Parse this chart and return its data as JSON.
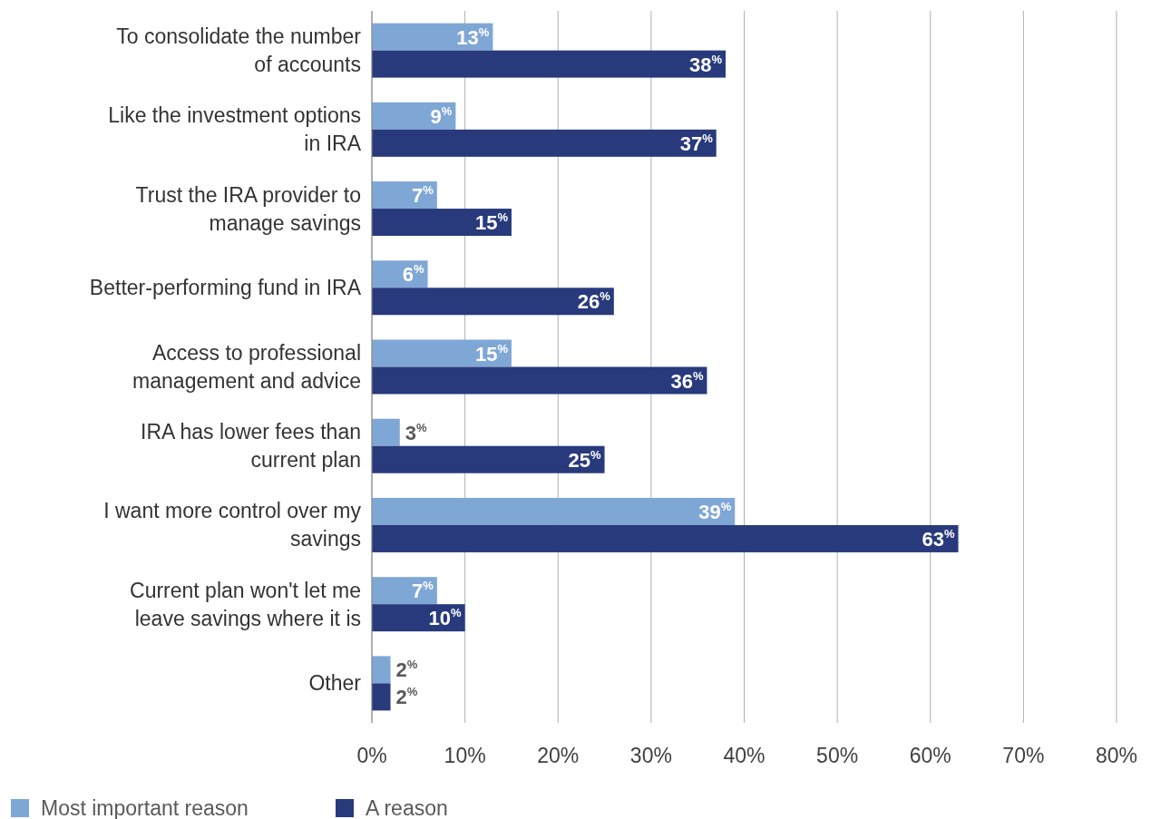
{
  "chart_data": {
    "type": "bar",
    "orientation": "horizontal",
    "categories": [
      "To consolidate the number of accounts",
      "Like the investment options in IRA",
      "Trust the IRA provider to manage savings",
      "Better-performing fund in IRA",
      "Access to professional management and advice",
      "IRA has lower fees than current plan",
      "I want more control over my savings",
      "Current plan won't let me leave savings where it is",
      "Other"
    ],
    "series": [
      {
        "name": "Most important reason",
        "color": "#7fa7d6",
        "values": [
          13,
          9,
          7,
          6,
          15,
          3,
          39,
          7,
          2
        ],
        "value_labels": [
          "13$^{%}$",
          "9$^{%}$",
          "7$^{%}$",
          "6$^{%}$",
          "15$^{%}$",
          "3$^{%}$",
          "39$^{%}$",
          "7$^{%}$",
          "2$^{%}$"
        ]
      },
      {
        "name": "A reason",
        "color": "#283a7c",
        "values": [
          38,
          37,
          15,
          26,
          36,
          25,
          63,
          10,
          2
        ],
        "value_labels": [
          "38$^{%}$",
          "37$^{%}$",
          "15$^{%}$",
          "26$^{%}$",
          "36$^{%}$",
          "25$^{%}$",
          "63$^{%}$",
          "10$^{%}$",
          "2$^{%}$"
        ]
      }
    ],
    "xlim": [
      0,
      80
    ],
    "xticks": [
      {
        "value": 0,
        "label": "0%"
      },
      {
        "value": 10,
        "label": "10%"
      },
      {
        "value": 20,
        "label": "20%"
      },
      {
        "value": 30,
        "label": "30%"
      },
      {
        "value": 40,
        "label": "40%"
      },
      {
        "value": 50,
        "label": "50%"
      },
      {
        "value": 60,
        "label": "60%"
      },
      {
        "value": 70,
        "label": "70%"
      },
      {
        "value": 80,
        "label": "80%"
      }
    ],
    "grid": "x",
    "legend": "bottom left"
  }
}
